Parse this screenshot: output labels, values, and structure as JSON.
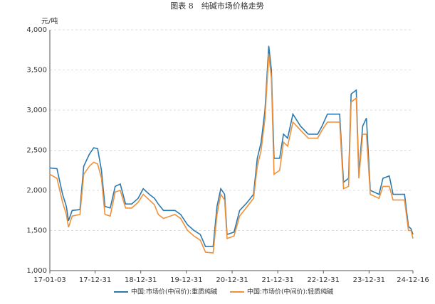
{
  "chart_data": {
    "type": "line",
    "title": "图表 8　纯碱市场价格走势",
    "y_label": "元/吨",
    "x": [
      "17-01-03",
      "17-03-01",
      "17-04-15",
      "17-05-15",
      "17-06-01",
      "17-07-01",
      "17-09-01",
      "17-10-01",
      "17-11-15",
      "17-12-20",
      "18-01-20",
      "18-02-20",
      "18-03-20",
      "18-05-01",
      "18-06-10",
      "18-07-20",
      "18-09-01",
      "18-10-20",
      "18-12-10",
      "19-01-20",
      "19-03-10",
      "19-04-20",
      "19-05-20",
      "19-07-01",
      "19-10-01",
      "19-11-15",
      "20-01-10",
      "20-03-01",
      "20-04-20",
      "20-06-01",
      "20-08-01",
      "20-09-01",
      "20-10-01",
      "20-11-01",
      "20-11-20",
      "21-01-15",
      "21-03-01",
      "21-05-01",
      "21-06-20",
      "21-07-20",
      "21-08-20",
      "21-09-20",
      "21-10-20",
      "21-11-10",
      "21-12-01",
      "22-01-15",
      "22-02-15",
      "22-03-20",
      "22-05-01",
      "22-07-01",
      "22-09-01",
      "22-11-15",
      "22-12-20",
      "23-02-01",
      "23-05-10",
      "23-06-10",
      "23-07-20",
      "23-08-10",
      "23-09-20",
      "23-10-10",
      "23-11-10",
      "23-12-10",
      "24-01-10",
      "24-03-20",
      "24-04-20",
      "24-06-10",
      "24-07-10",
      "24-10-10",
      "24-11-10",
      "24-12-01",
      "24-12-16"
    ],
    "series": [
      {
        "name": "中国:市场价(中间价):重质纯碱",
        "color": "#2a7ab0",
        "values": [
          2280,
          2270,
          1950,
          1800,
          1620,
          1750,
          1760,
          2300,
          2450,
          2530,
          2520,
          2250,
          1800,
          1780,
          2050,
          2080,
          1830,
          1830,
          1900,
          2020,
          1950,
          1900,
          1830,
          1750,
          1750,
          1700,
          1570,
          1500,
          1450,
          1300,
          1300,
          1800,
          2020,
          1950,
          1450,
          1480,
          1750,
          1850,
          1950,
          2400,
          2600,
          3000,
          3800,
          3500,
          2400,
          2400,
          2700,
          2650,
          2950,
          2800,
          2700,
          2700,
          2800,
          2950,
          2950,
          2100,
          2150,
          3200,
          3250,
          2200,
          2800,
          2900,
          2000,
          1950,
          2150,
          2180,
          1950,
          1950,
          1550,
          1520,
          1450
        ]
      },
      {
        "name": "中国:市场价(中间价):轻质纯碱",
        "color": "#f0913a",
        "values": [
          2200,
          2150,
          1850,
          1700,
          1540,
          1680,
          1700,
          2200,
          2300,
          2350,
          2330,
          2150,
          1700,
          1680,
          1980,
          2000,
          1780,
          1780,
          1850,
          1950,
          1880,
          1820,
          1700,
          1650,
          1700,
          1650,
          1500,
          1430,
          1380,
          1230,
          1220,
          1700,
          1950,
          1880,
          1400,
          1430,
          1680,
          1800,
          1900,
          2300,
          2500,
          2900,
          3700,
          3400,
          2200,
          2250,
          2600,
          2550,
          2850,
          2750,
          2650,
          2650,
          2750,
          2850,
          2850,
          2020,
          2050,
          3100,
          3150,
          2150,
          2700,
          2700,
          1950,
          1900,
          2050,
          2050,
          1880,
          1880,
          1500,
          1500,
          1400
        ]
      }
    ],
    "xlim": [
      "17-01-03",
      "24-12-16"
    ],
    "xticks": [
      "17-01-03",
      "17-12-31",
      "18-12-31",
      "19-12-31",
      "20-12-31",
      "21-12-31",
      "22-12-31",
      "23-12-31",
      "24-12-16"
    ],
    "ylim": [
      1000,
      4000
    ],
    "yticks": [
      {
        "value": 1000,
        "label": "1,000"
      },
      {
        "value": 1500,
        "label": "1,500"
      },
      {
        "value": 2000,
        "label": "2,000"
      },
      {
        "value": 2500,
        "label": "2,500"
      },
      {
        "value": 3000,
        "label": "3,000"
      },
      {
        "value": 3500,
        "label": "3,500"
      },
      {
        "value": 4000,
        "label": "4,000"
      }
    ],
    "grid": true,
    "legend": "bottom"
  }
}
